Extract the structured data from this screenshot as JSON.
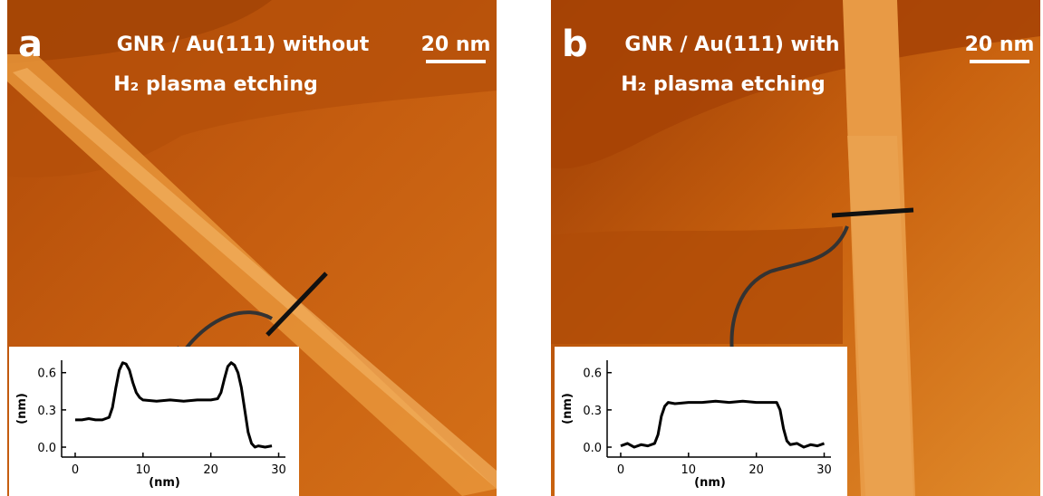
{
  "panels": [
    {
      "letter": "a",
      "title_lines": [
        "GNR / Au(111) without",
        "H₂ plasma etching"
      ],
      "scale_bar": "20 nm"
    },
    {
      "letter": "b",
      "title_lines": [
        "GNR / Au(111) with",
        "H₂ plasma etching"
      ],
      "scale_bar": "20 nm"
    }
  ],
  "chart_data": [
    {
      "type": "line",
      "x_label": "(nm)",
      "y_label": "(nm)",
      "color": "#000000",
      "x": [
        0,
        1,
        2,
        3,
        4,
        5,
        5.5,
        6,
        6.5,
        7,
        7.5,
        8,
        8.5,
        9,
        9.5,
        10,
        12,
        14,
        16,
        18,
        20,
        21,
        21.5,
        22,
        22.5,
        23,
        23.5,
        24,
        24.5,
        25,
        25.5,
        26,
        26.5,
        27,
        28,
        29
      ],
      "values": [
        0.22,
        0.22,
        0.23,
        0.22,
        0.22,
        0.24,
        0.32,
        0.48,
        0.62,
        0.68,
        0.67,
        0.62,
        0.52,
        0.44,
        0.4,
        0.38,
        0.37,
        0.38,
        0.37,
        0.38,
        0.38,
        0.39,
        0.44,
        0.55,
        0.65,
        0.68,
        0.66,
        0.6,
        0.48,
        0.3,
        0.12,
        0.03,
        0,
        0.01,
        0,
        0.01
      ],
      "xlim": [
        -2,
        31
      ],
      "ylim": [
        -0.08,
        0.7
      ],
      "xticks": [
        0,
        10,
        20,
        30
      ],
      "yticks": [
        {
          "value": 0,
          "label": "0.0"
        },
        0.3,
        0.6
      ]
    },
    {
      "type": "line",
      "x_label": "(nm)",
      "y_label": "(nm)",
      "color": "#000000",
      "x": [
        0,
        1,
        2,
        3,
        4,
        5,
        5.5,
        6,
        6.5,
        7,
        8,
        10,
        12,
        14,
        16,
        18,
        20,
        22,
        23,
        23.5,
        24,
        24.5,
        25,
        26,
        27,
        28,
        29,
        30
      ],
      "values": [
        0.01,
        0.03,
        0,
        0.02,
        0.01,
        0.03,
        0.1,
        0.25,
        0.33,
        0.36,
        0.35,
        0.36,
        0.36,
        0.37,
        0.36,
        0.37,
        0.36,
        0.36,
        0.36,
        0.3,
        0.15,
        0.05,
        0.02,
        0.03,
        0,
        0.02,
        0.01,
        0.03
      ],
      "xlim": [
        -2,
        31
      ],
      "ylim": [
        -0.08,
        0.7
      ],
      "xticks": [
        0,
        10,
        20,
        30
      ],
      "yticks": [
        {
          "value": 0,
          "label": "0.0"
        },
        0.3,
        0.6
      ]
    }
  ]
}
